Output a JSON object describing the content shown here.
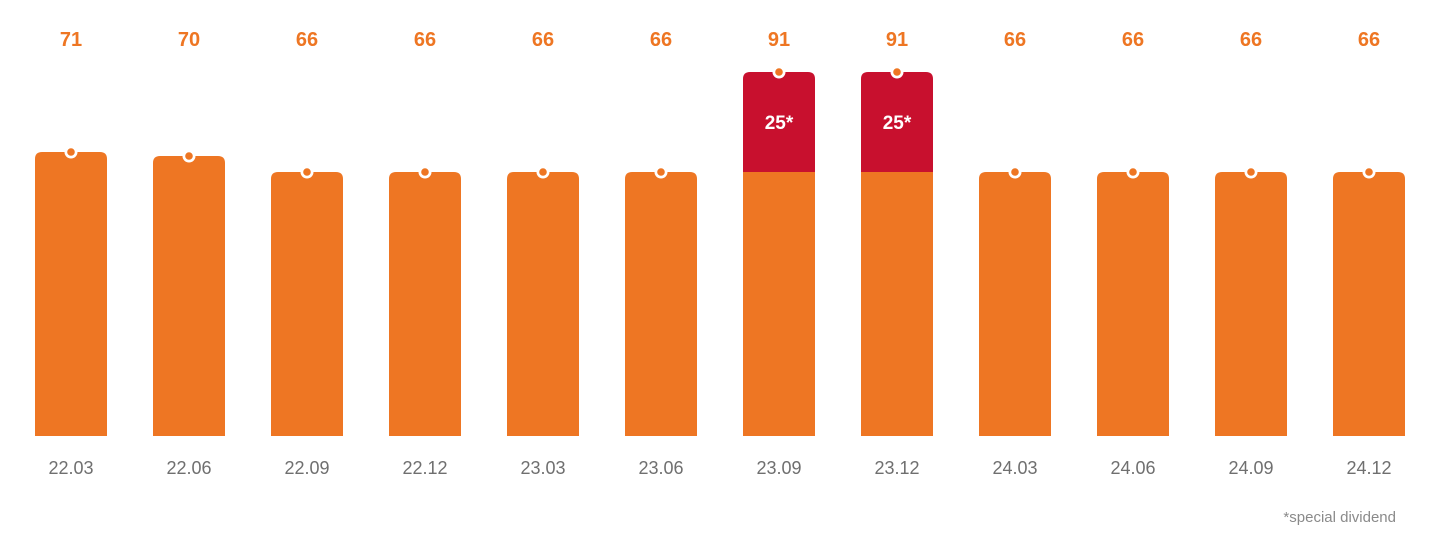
{
  "chart_data": {
    "type": "bar",
    "stacked": true,
    "title": "",
    "xlabel": "",
    "ylabel": "",
    "categories": [
      "22.03",
      "22.06",
      "22.09",
      "22.12",
      "23.03",
      "23.06",
      "23.09",
      "23.12",
      "24.03",
      "24.06",
      "24.09",
      "24.12"
    ],
    "series": [
      {
        "values": [
          71,
          70,
          66,
          66,
          66,
          66,
          66,
          66,
          66,
          66,
          66,
          66
        ],
        "color": "#ee7623"
      },
      {
        "name": "special dividend",
        "values": [
          0,
          0,
          0,
          0,
          0,
          0,
          25,
          25,
          0,
          0,
          0,
          0
        ],
        "color": "#c8102e"
      }
    ],
    "totals": [
      71,
      70,
      66,
      66,
      66,
      66,
      91,
      91,
      66,
      66,
      66,
      66
    ],
    "segment_labels": [
      "",
      "",
      "",
      "",
      "",
      "",
      "25*",
      "25*",
      "",
      "",
      "",
      ""
    ],
    "ylim": [
      0,
      96
    ],
    "grid": false,
    "legend": "none",
    "total_label_color": "#ee7623",
    "footnote": "*special dividend"
  }
}
